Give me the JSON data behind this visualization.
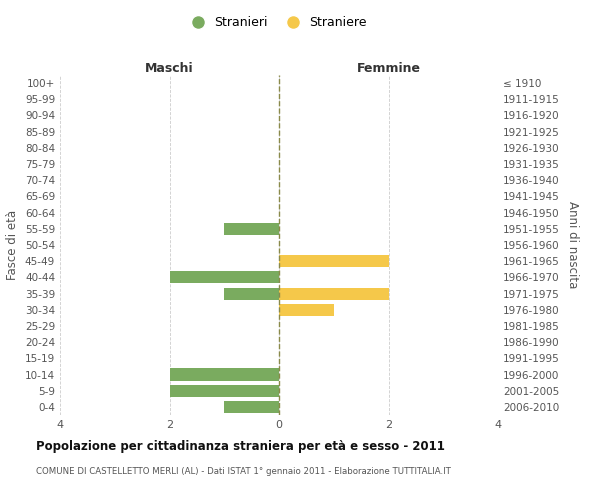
{
  "age_groups": [
    "100+",
    "95-99",
    "90-94",
    "85-89",
    "80-84",
    "75-79",
    "70-74",
    "65-69",
    "60-64",
    "55-59",
    "50-54",
    "45-49",
    "40-44",
    "35-39",
    "30-34",
    "25-29",
    "20-24",
    "15-19",
    "10-14",
    "5-9",
    "0-4"
  ],
  "birth_years": [
    "≤ 1910",
    "1911-1915",
    "1916-1920",
    "1921-1925",
    "1926-1930",
    "1931-1935",
    "1936-1940",
    "1941-1945",
    "1946-1950",
    "1951-1955",
    "1956-1960",
    "1961-1965",
    "1966-1970",
    "1971-1975",
    "1976-1980",
    "1981-1985",
    "1986-1990",
    "1991-1995",
    "1996-2000",
    "2001-2005",
    "2006-2010"
  ],
  "males": [
    0,
    0,
    0,
    0,
    0,
    0,
    0,
    0,
    0,
    1,
    0,
    0,
    2,
    1,
    0,
    0,
    0,
    0,
    2,
    2,
    1
  ],
  "females": [
    0,
    0,
    0,
    0,
    0,
    0,
    0,
    0,
    0,
    0,
    0,
    2,
    0,
    2,
    1,
    0,
    0,
    0,
    0,
    0,
    0
  ],
  "male_color": "#7aab5f",
  "female_color": "#f5c84a",
  "grid_color": "#cccccc",
  "center_line_color": "#8a8a4a",
  "background_color": "#ffffff",
  "title": "Popolazione per cittadinanza straniera per età e sesso - 2011",
  "subtitle": "COMUNE DI CASTELLETTO MERLI (AL) - Dati ISTAT 1° gennaio 2011 - Elaborazione TUTTITALIA.IT",
  "left_label": "Maschi",
  "right_label": "Femmine",
  "y_left_label": "Fasce di età",
  "y_right_label": "Anni di nascita",
  "legend_male": "Stranieri",
  "legend_female": "Straniere",
  "xlim": 4,
  "bar_height": 0.75
}
